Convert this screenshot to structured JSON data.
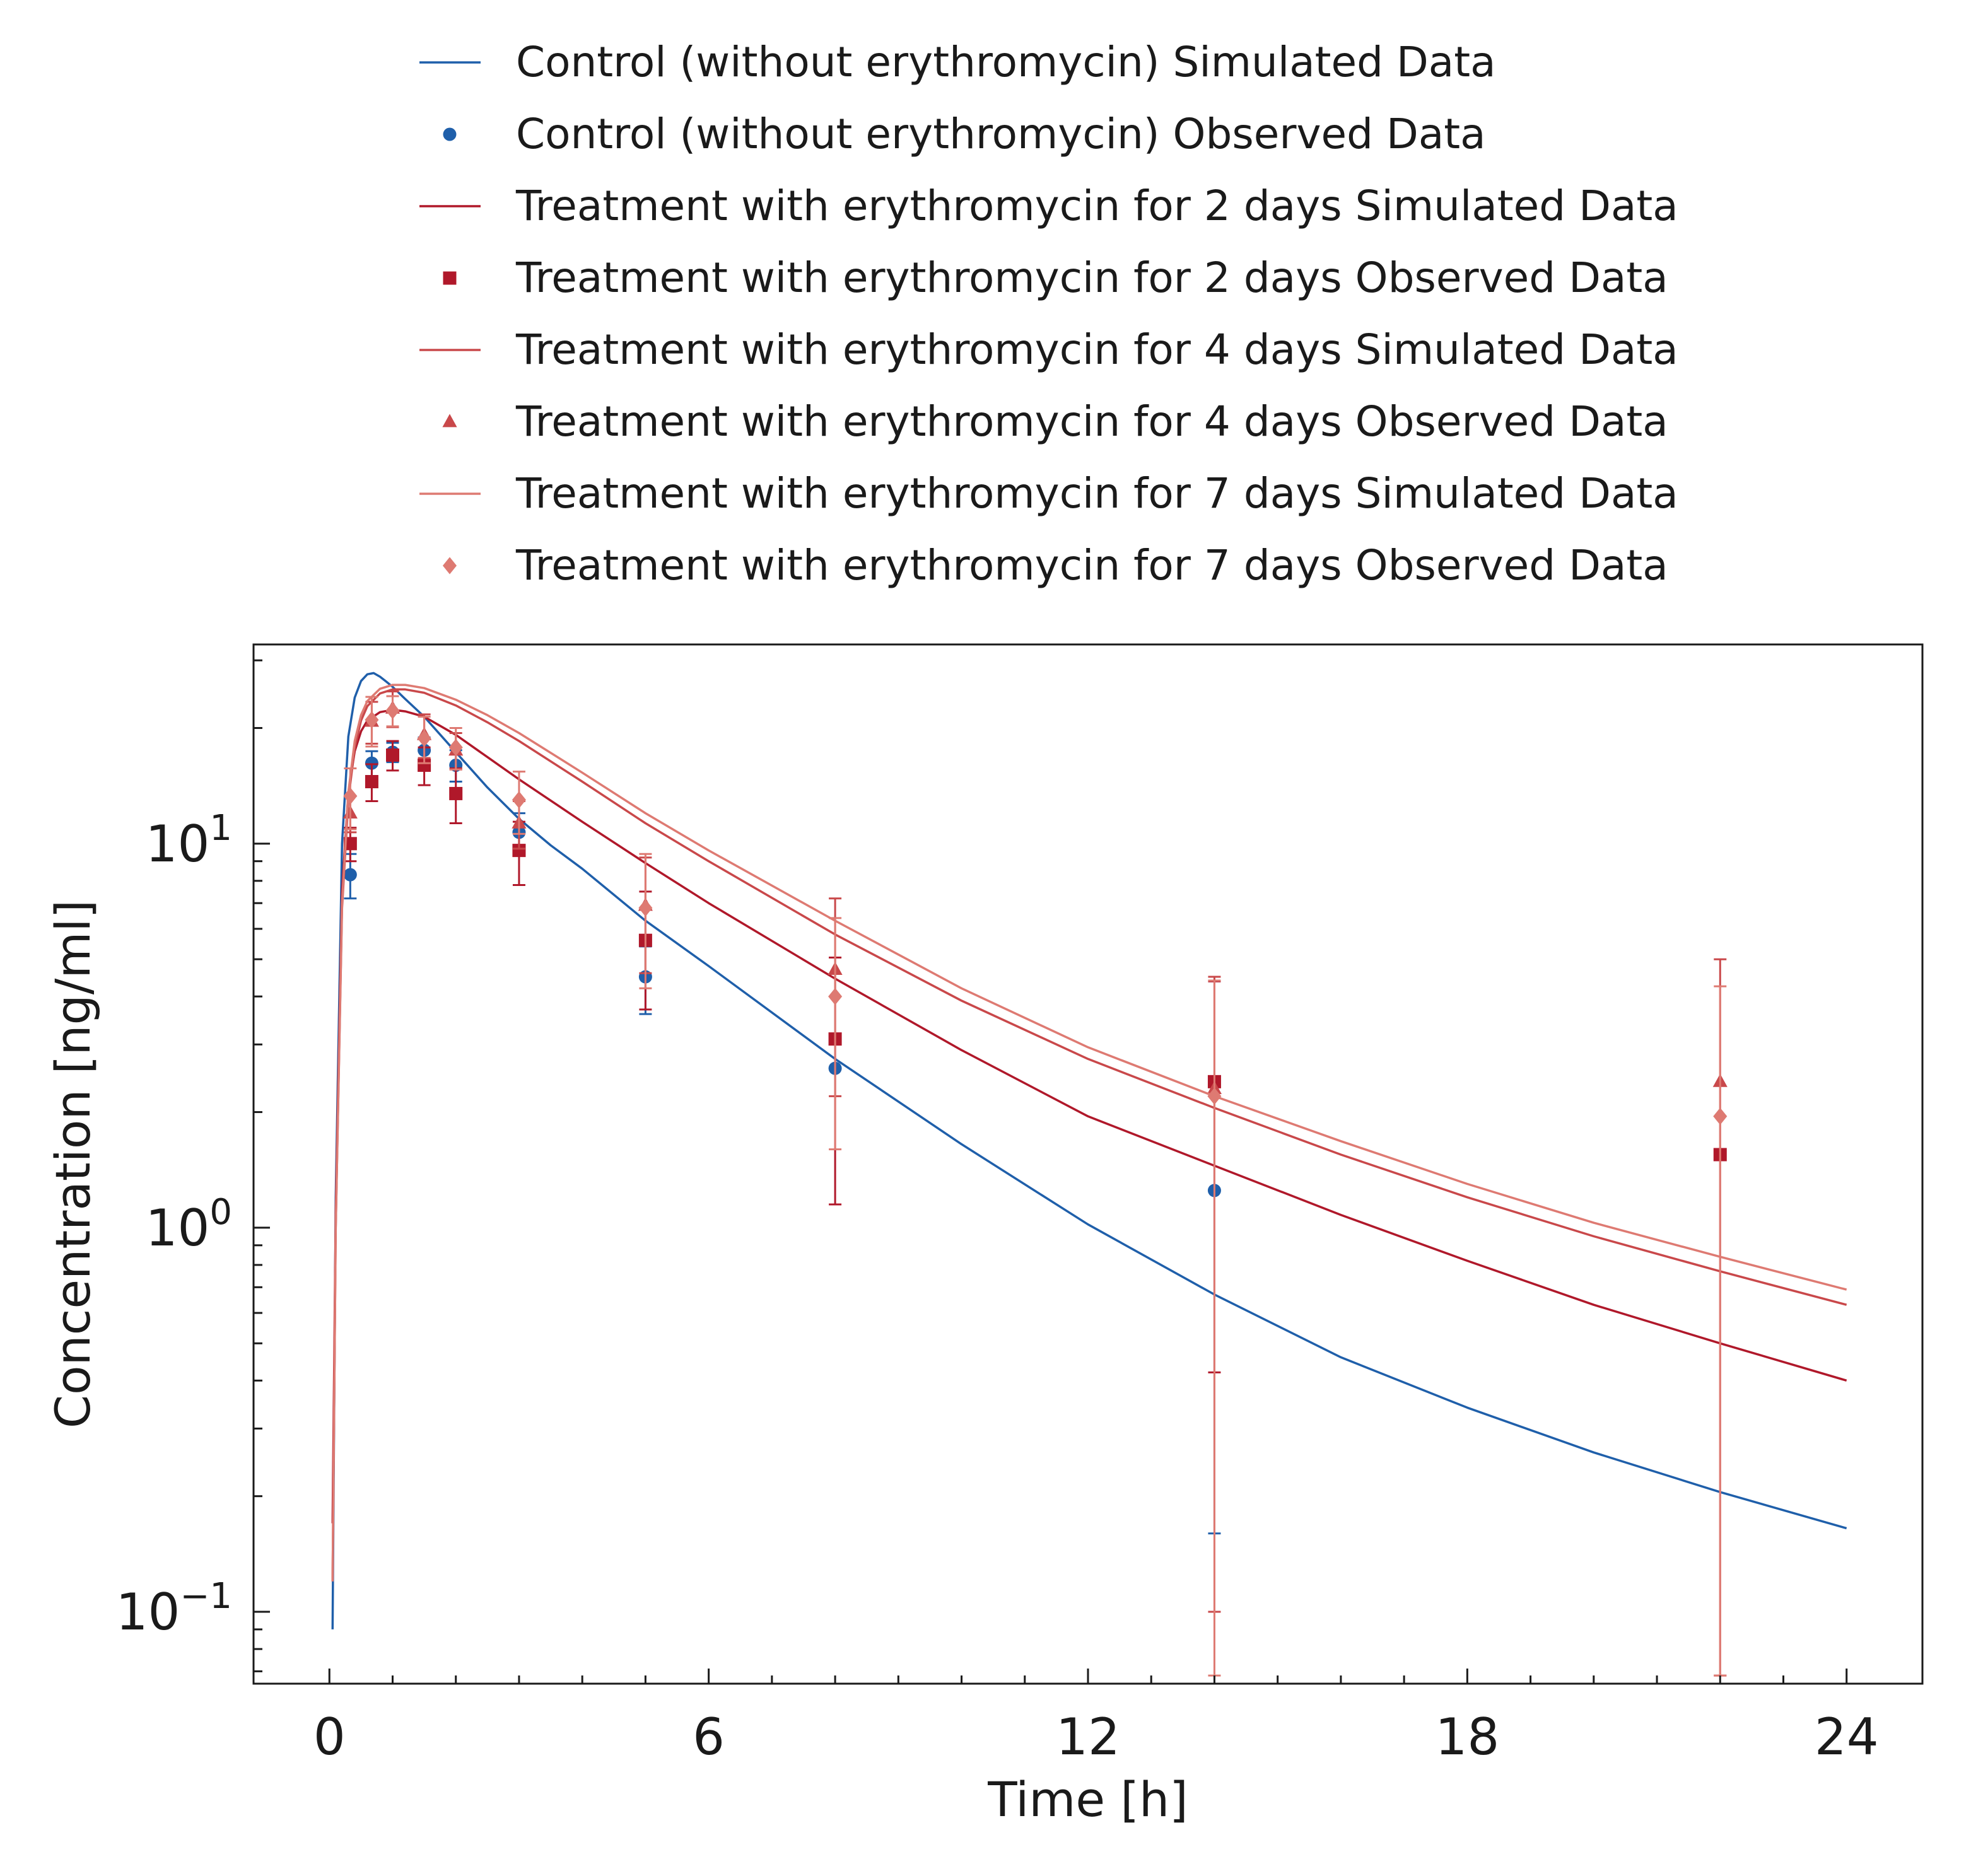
{
  "chart_data": {
    "type": "line",
    "xlabel": "Time [h]",
    "ylabel": "Concentration [ng/ml]",
    "xlim": [
      -1.2,
      25.2
    ],
    "ylim": [
      0.065,
      33
    ],
    "yscale": "log",
    "xticks": [
      0,
      6,
      12,
      18,
      24
    ],
    "xtick_labels": [
      "0",
      "6",
      "12",
      "18",
      "24"
    ],
    "yticks": [
      {
        "value": 0.1,
        "base": "10",
        "exp": "−1"
      },
      {
        "value": 1,
        "base": "10",
        "exp": "0"
      },
      {
        "value": 10,
        "base": "10",
        "exp": "1"
      }
    ],
    "grid": false,
    "legend_position": "top",
    "series": [
      {
        "name": "Control (without erythromycin) Simulated Data",
        "kind": "line",
        "color": "#1f5faa",
        "x": [
          0.05,
          0.1,
          0.2,
          0.3,
          0.4,
          0.5,
          0.6,
          0.7,
          0.8,
          0.9,
          1.0,
          1.2,
          1.5,
          2.0,
          2.5,
          3.0,
          3.5,
          4.0,
          5.0,
          6.0,
          8.0,
          10.0,
          12.0,
          14.0,
          16.0,
          18.0,
          20.0,
          22.0,
          24.0
        ],
        "y": [
          0.09,
          1.2,
          10.0,
          19.0,
          24.0,
          26.5,
          27.6,
          27.8,
          27.2,
          26.4,
          25.6,
          23.8,
          21.4,
          17.3,
          14.0,
          11.6,
          9.9,
          8.6,
          6.3,
          4.8,
          2.75,
          1.65,
          1.02,
          0.67,
          0.46,
          0.34,
          0.26,
          0.205,
          0.165
        ]
      },
      {
        "name": "Control (without erythromycin) Observed Data",
        "kind": "scatter",
        "marker": "circle",
        "color": "#1f5faa",
        "x": [
          0.33,
          0.67,
          1.0,
          1.5,
          2.0,
          3.0,
          5.0,
          8.0,
          14.0
        ],
        "y": [
          8.3,
          16.2,
          17.3,
          17.5,
          16.0,
          10.7,
          4.5,
          2.6,
          1.25
        ],
        "err": [
          1.1,
          1.2,
          1.0,
          1.4,
          1.5,
          1.3,
          0.9,
          null,
          1.09
        ]
      },
      {
        "name": "Treatment with erythromycin for 2 days Simulated Data",
        "kind": "line",
        "color": "#b0182a",
        "x": [
          0.05,
          0.1,
          0.2,
          0.3,
          0.4,
          0.5,
          0.6,
          0.8,
          1.0,
          1.2,
          1.5,
          2.0,
          2.5,
          3.0,
          4.0,
          5.0,
          6.0,
          8.0,
          10.0,
          12.0,
          14.0,
          16.0,
          18.0,
          20.0,
          22.0,
          24.0
        ],
        "y": [
          0.17,
          1.1,
          7.5,
          13.6,
          17.4,
          19.6,
          20.9,
          22.0,
          22.3,
          22.1,
          21.4,
          19.2,
          16.8,
          14.7,
          11.4,
          8.9,
          7.0,
          4.45,
          2.9,
          1.95,
          1.45,
          1.08,
          0.82,
          0.63,
          0.5,
          0.4
        ]
      },
      {
        "name": "Treatment with erythromycin for 2 days Observed Data",
        "kind": "scatter",
        "marker": "square",
        "color": "#b0182a",
        "x": [
          0.33,
          0.67,
          1.0,
          1.5,
          2.0,
          3.0,
          5.0,
          8.0,
          14.0,
          22.0
        ],
        "y": [
          10.0,
          14.5,
          17.0,
          16.0,
          13.5,
          9.6,
          5.6,
          3.1,
          2.4,
          1.55
        ],
        "err": [
          1.0,
          1.6,
          1.5,
          1.8,
          2.2,
          1.8,
          1.9,
          1.95,
          1.98,
          null
        ]
      },
      {
        "name": "Treatment with erythromycin for 4 days Simulated Data",
        "kind": "line",
        "color": "#c9484a",
        "x": [
          0.05,
          0.1,
          0.2,
          0.3,
          0.4,
          0.5,
          0.6,
          0.8,
          1.0,
          1.2,
          1.5,
          2.0,
          2.5,
          3.0,
          4.0,
          5.0,
          6.0,
          8.0,
          10.0,
          12.0,
          14.0,
          16.0,
          18.0,
          20.0,
          22.0,
          24.0
        ],
        "y": [
          0.12,
          1.0,
          6.8,
          13.0,
          17.8,
          20.9,
          22.8,
          24.6,
          25.2,
          25.2,
          24.7,
          22.9,
          20.7,
          18.5,
          14.5,
          11.3,
          9.0,
          5.8,
          3.9,
          2.75,
          2.05,
          1.55,
          1.2,
          0.95,
          0.77,
          0.63
        ]
      },
      {
        "name": "Treatment with erythromycin for 4 days Observed Data",
        "kind": "scatter",
        "marker": "triangle",
        "color": "#c9484a",
        "x": [
          0.33,
          0.67,
          1.0,
          1.5,
          2.0,
          3.0,
          5.0,
          8.0,
          14.0,
          22.0
        ],
        "y": [
          12.0,
          20.8,
          22.5,
          19.2,
          17.5,
          11.3,
          6.9,
          4.7,
          2.3,
          2.4
        ],
        "err": [
          1.3,
          2.6,
          2.4,
          2.5,
          1.9,
          1.6,
          2.3,
          2.5,
          2.2,
          2.6
        ]
      },
      {
        "name": "Treatment with erythromycin for 7 days Simulated Data",
        "kind": "line",
        "color": "#de7a72",
        "x": [
          0.05,
          0.1,
          0.2,
          0.3,
          0.4,
          0.5,
          0.6,
          0.8,
          1.0,
          1.2,
          1.5,
          2.0,
          2.5,
          3.0,
          4.0,
          5.0,
          6.0,
          8.0,
          10.0,
          12.0,
          14.0,
          16.0,
          18.0,
          20.0,
          22.0,
          24.0
        ],
        "y": [
          0.12,
          1.0,
          7.0,
          13.6,
          18.5,
          21.6,
          23.5,
          25.3,
          25.9,
          25.9,
          25.4,
          23.7,
          21.6,
          19.4,
          15.3,
          12.0,
          9.6,
          6.3,
          4.2,
          2.95,
          2.2,
          1.68,
          1.3,
          1.03,
          0.84,
          0.69
        ]
      },
      {
        "name": "Treatment with erythromycin for 7 days Observed Data",
        "kind": "scatter",
        "marker": "diamond",
        "color": "#de7a72",
        "x": [
          0.33,
          0.67,
          1.0,
          1.5,
          2.0,
          3.0,
          5.0,
          8.0,
          14.0,
          22.0
        ],
        "y": [
          13.3,
          21.0,
          22.2,
          18.8,
          17.8,
          13.0,
          6.8,
          4.0,
          2.2,
          1.95
        ],
        "err": [
          2.4,
          3.1,
          2.0,
          2.6,
          2.2,
          2.4,
          2.6,
          2.4,
          2.2,
          2.3
        ]
      }
    ]
  }
}
